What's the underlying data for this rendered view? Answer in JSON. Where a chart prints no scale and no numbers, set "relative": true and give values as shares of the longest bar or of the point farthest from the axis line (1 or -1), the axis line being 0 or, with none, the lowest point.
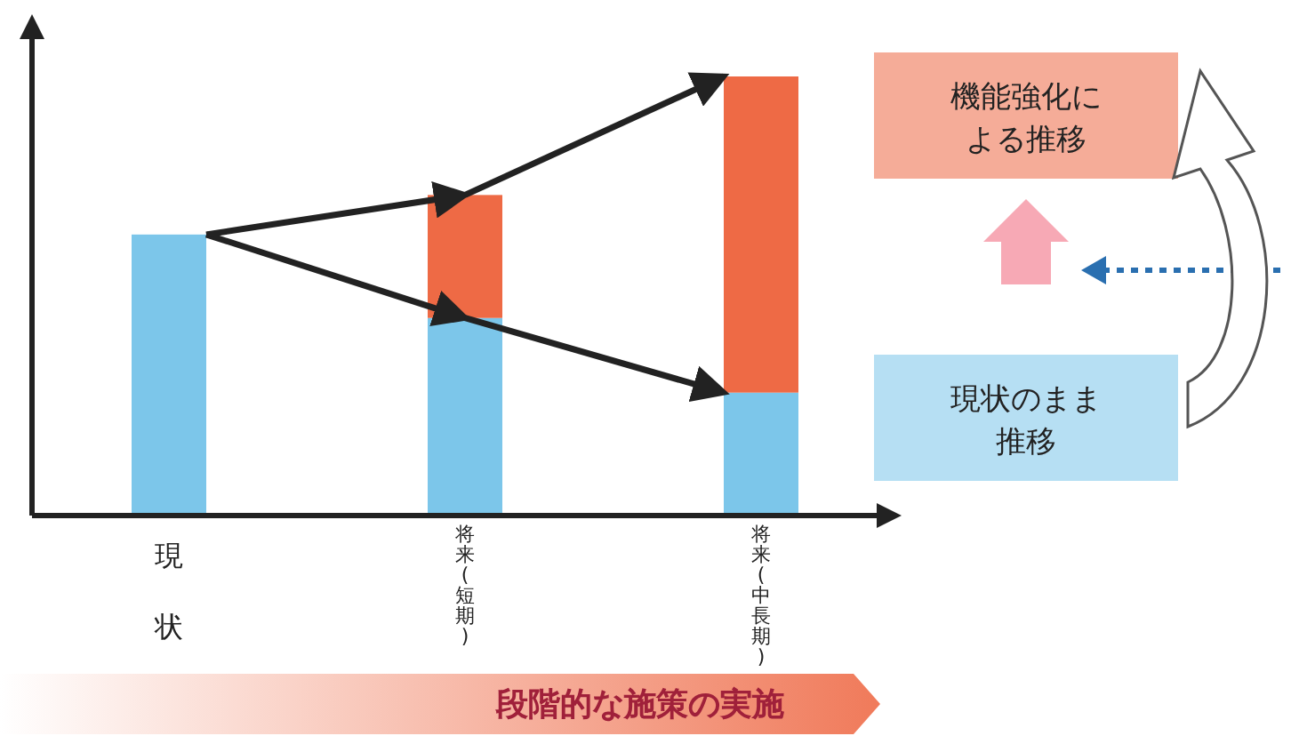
{
  "chart_data": {
    "type": "bar",
    "relative": true,
    "stacked": true,
    "categories": [
      "現状",
      "将来(短期)",
      "将来(中長期)"
    ],
    "series": [
      {
        "name": "現状のまま推移",
        "color": "#7cc6ea",
        "values": [
          0.64,
          0.45,
          0.28
        ]
      },
      {
        "name": "機能強化による推移",
        "color": "#ee6a45",
        "values": [
          null,
          0.28,
          0.72
        ]
      }
    ],
    "annotations": [
      "段階的な施策の実施"
    ],
    "legend": "right"
  }
}
